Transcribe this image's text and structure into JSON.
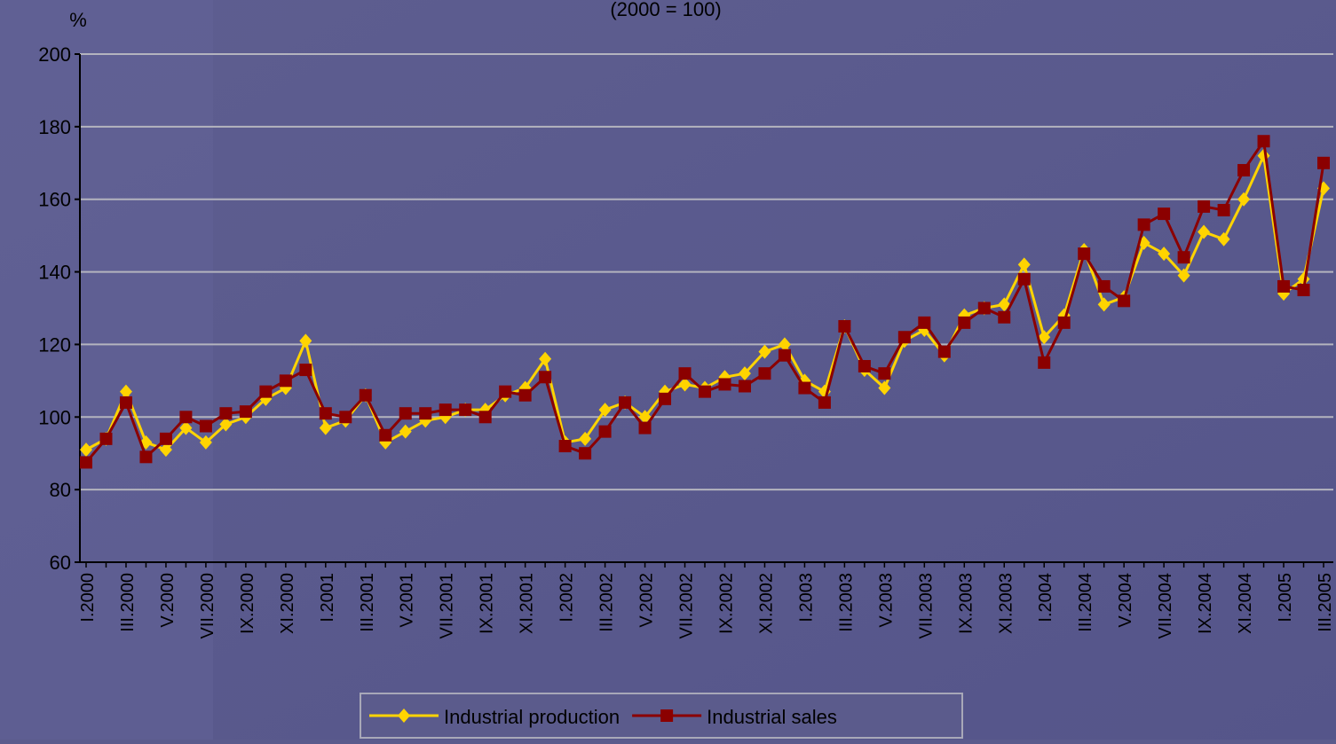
{
  "chart_data": {
    "type": "line",
    "title": "(2000 = 100)",
    "y_label": "%",
    "categories": [
      "I.2000",
      null,
      "III.2000",
      null,
      "V.2000",
      null,
      "VII.2000",
      null,
      "IX.2000",
      null,
      "XI.2000",
      null,
      "I.2001",
      null,
      "III.2001",
      null,
      "V.2001",
      null,
      "VII.2001",
      null,
      "IX.2001",
      null,
      "XI.2001",
      null,
      "I.2002",
      null,
      "III.2002",
      null,
      "V.2002",
      null,
      "VII.2002",
      null,
      "IX.2002",
      null,
      "XI.2002",
      null,
      "I.2003",
      null,
      "III.2003",
      null,
      "V.2003",
      null,
      "VII.2003",
      null,
      "IX.2003",
      null,
      "XI.2003",
      null,
      "I.2004",
      null,
      "III.2004",
      null,
      "V.2004",
      null,
      "VII.2004",
      null,
      "IX.2004",
      null,
      "XI.2004",
      null,
      "I.2005",
      null,
      "III.2005"
    ],
    "series": [
      {
        "name": "Industrial production",
        "color": "#ffd400",
        "marker": "diamond",
        "values": [
          91,
          94,
          107,
          93,
          91,
          97,
          93,
          98,
          100,
          105,
          108,
          121,
          97,
          99,
          106,
          93,
          96,
          99,
          100,
          102,
          102,
          106,
          108,
          116,
          93,
          94,
          102,
          104,
          100,
          107,
          109,
          108,
          111,
          112,
          118,
          120,
          110,
          107,
          125,
          113,
          108,
          121,
          124,
          117,
          128,
          130,
          131,
          142,
          122,
          128,
          146,
          131,
          133,
          148,
          145,
          139,
          151,
          149,
          160,
          172,
          134,
          138,
          163
        ]
      },
      {
        "name": "Industrial sales",
        "color": "#8b0000",
        "marker": "square",
        "values": [
          87.5,
          94,
          104,
          89,
          94,
          100,
          97.5,
          101,
          101.5,
          107,
          110,
          113,
          101,
          100,
          106,
          95,
          101,
          101,
          102,
          102,
          100,
          107,
          106,
          111,
          92,
          90,
          96,
          104,
          97,
          105,
          112,
          107,
          109,
          108.5,
          112,
          117,
          108,
          104,
          125,
          114,
          112,
          122,
          126,
          118,
          126,
          130,
          127.5,
          138,
          115,
          126,
          145,
          136,
          132,
          153,
          156,
          144,
          158,
          157,
          168,
          176,
          136,
          135,
          170
        ]
      }
    ],
    "ylim": [
      60,
      200
    ],
    "yticks": [
      60,
      80,
      100,
      120,
      140,
      160,
      180,
      200
    ],
    "grid": true
  }
}
